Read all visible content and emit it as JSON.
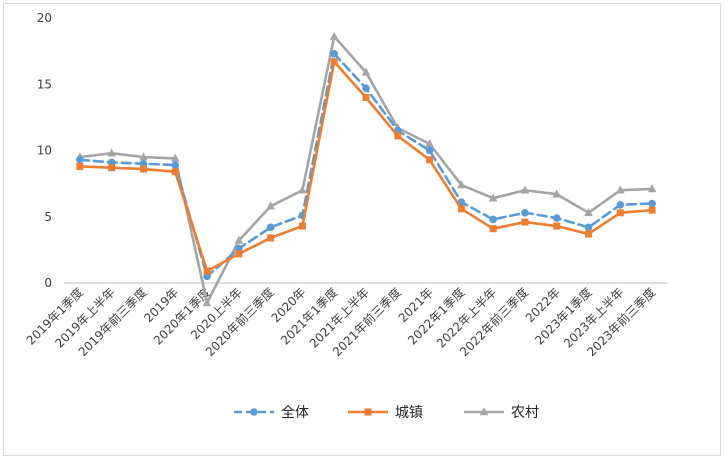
{
  "chart_data": {
    "type": "line",
    "title": "",
    "xlabel": "",
    "ylabel": "",
    "ylim": [
      0,
      20
    ],
    "yticks": [
      0,
      5,
      10,
      15,
      20
    ],
    "grid": false,
    "legend_position": "bottom",
    "categories": [
      "2019年1季度",
      "2019年上半年",
      "2019年前三季度",
      "2019年",
      "2020年1季度",
      "2020上半年",
      "2020年前三季度",
      "2020年",
      "2021年1季度",
      "2021年上半年",
      "2021年前三季度",
      "2021年",
      "2022年1季度",
      "2022年上半年",
      "2022年前三季度",
      "2022年",
      "2023年1季度",
      "2023年上半年",
      "2023年前三季度"
    ],
    "series": [
      {
        "name": "全体",
        "color": "#5b9bd5",
        "style": "dashed",
        "marker": "circle",
        "values": [
          9.3,
          9.1,
          9.0,
          8.9,
          0.5,
          2.6,
          4.2,
          5.1,
          17.3,
          14.7,
          11.5,
          10.0,
          6.1,
          4.8,
          5.3,
          4.9,
          4.2,
          5.9,
          6.0
        ]
      },
      {
        "name": "城镇",
        "color": "#ed7d31",
        "style": "solid",
        "marker": "square",
        "values": [
          8.8,
          8.7,
          8.6,
          8.4,
          0.9,
          2.2,
          3.4,
          4.3,
          16.7,
          14.0,
          11.1,
          9.3,
          5.6,
          4.1,
          4.6,
          4.3,
          3.7,
          5.3,
          5.5
        ]
      },
      {
        "name": "农村",
        "color": "#a5a5a5",
        "style": "solid",
        "marker": "triangle",
        "values": [
          9.5,
          9.8,
          9.5,
          9.4,
          -1.5,
          3.2,
          5.8,
          7.0,
          18.6,
          15.9,
          11.7,
          10.5,
          7.4,
          6.4,
          7.0,
          6.7,
          5.3,
          7.0,
          7.1
        ]
      }
    ]
  }
}
